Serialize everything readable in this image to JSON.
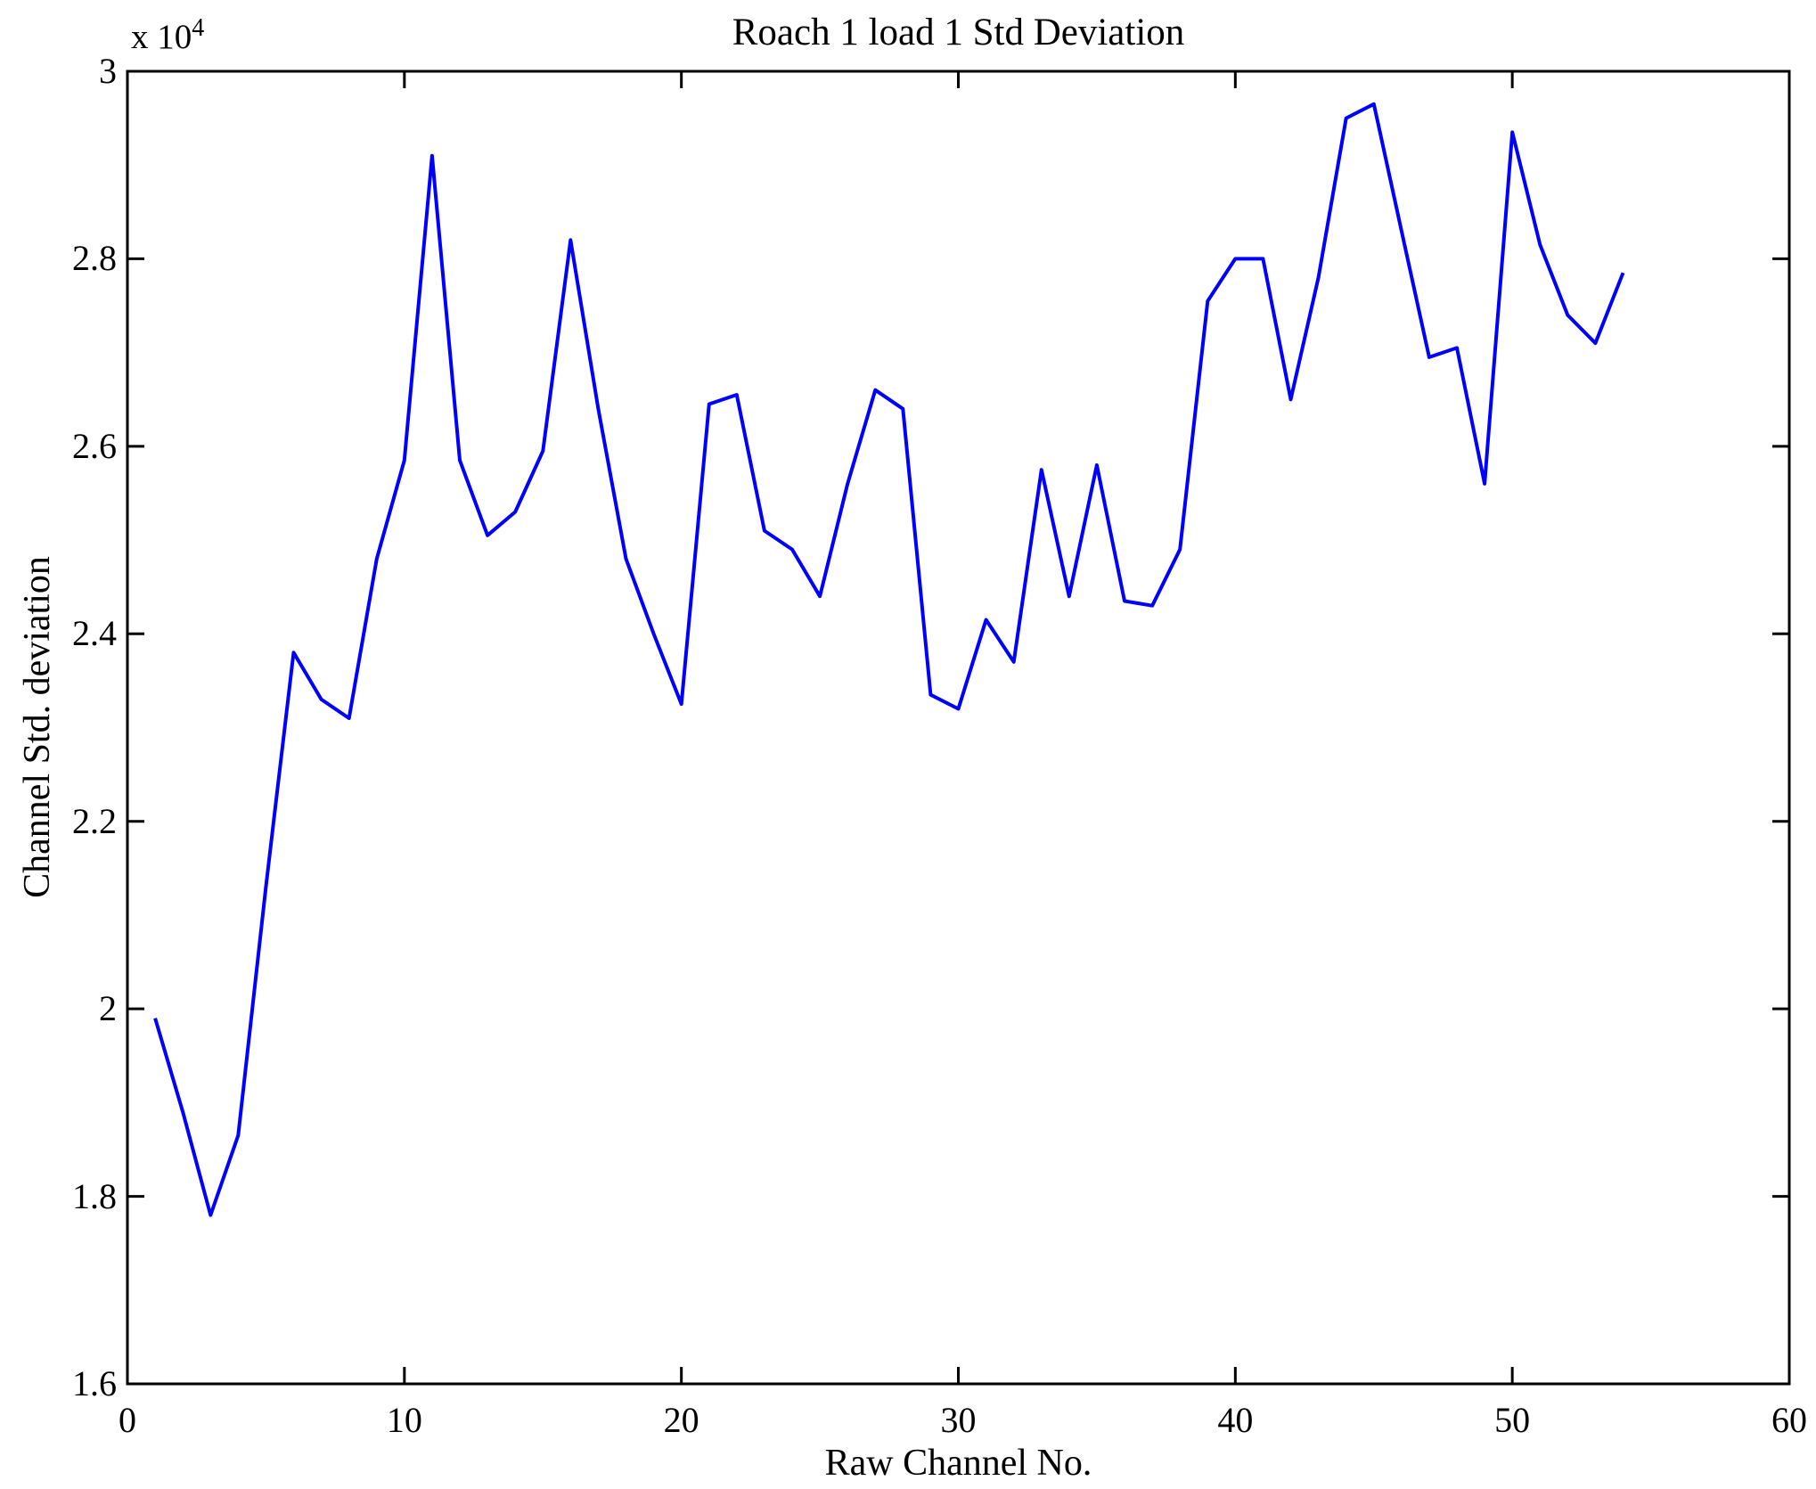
{
  "figure": {
    "background": "#ffffff",
    "title": "Roach 1 load 1 Std Deviation",
    "x_axis_label": "Raw Channel No.",
    "y_axis_label": "Channel Std. deviation",
    "y_multiplier_base": "x 10",
    "y_multiplier_exponent": "4",
    "line_color": "#0000ff",
    "axis_color": "#000000"
  },
  "chart_data": {
    "type": "line",
    "title": "Roach 1 load 1 Std Deviation",
    "xlabel": "Raw Channel No.",
    "ylabel": "Channel Std. deviation",
    "y_unit_multiplier": 10000,
    "grid": false,
    "legend_position": "none",
    "xlim": [
      0,
      60
    ],
    "ylim_x1e4": [
      1.6,
      3.0
    ],
    "x_ticks": [
      0,
      10,
      20,
      30,
      40,
      50,
      60
    ],
    "x_tick_labels": [
      "0",
      "10",
      "20",
      "30",
      "40",
      "50",
      "60"
    ],
    "y_ticks_x1e4": [
      1.6,
      1.8,
      2.0,
      2.2,
      2.4,
      2.6,
      2.8,
      3.0
    ],
    "y_tick_labels": [
      "1.6",
      "1.8",
      "2",
      "2.2",
      "2.4",
      "2.6",
      "2.8",
      "3"
    ],
    "x": [
      1,
      2,
      3,
      4,
      5,
      6,
      7,
      8,
      9,
      10,
      11,
      12,
      13,
      14,
      15,
      16,
      17,
      18,
      19,
      20,
      21,
      22,
      23,
      24,
      25,
      26,
      27,
      28,
      29,
      30,
      31,
      32,
      33,
      34,
      35,
      36,
      37,
      38,
      39,
      40,
      41,
      42,
      43,
      44,
      45,
      46,
      47,
      48,
      49,
      50,
      51,
      52,
      53,
      54
    ],
    "values_x1e4": [
      1.99,
      1.89,
      1.78,
      1.865,
      2.13,
      2.38,
      2.33,
      2.31,
      2.48,
      2.585,
      2.91,
      2.585,
      2.505,
      2.53,
      2.595,
      2.82,
      2.64,
      2.48,
      2.4,
      2.325,
      2.645,
      2.655,
      2.51,
      2.49,
      2.44,
      2.56,
      2.66,
      2.64,
      2.335,
      2.32,
      2.415,
      2.37,
      2.575,
      2.44,
      2.58,
      2.435,
      2.43,
      2.49,
      2.755,
      2.8,
      2.8,
      2.65,
      2.78,
      2.95,
      2.965,
      2.83,
      2.695,
      2.705,
      2.56,
      2.935,
      2.815,
      2.74,
      2.71,
      2.785
    ]
  }
}
